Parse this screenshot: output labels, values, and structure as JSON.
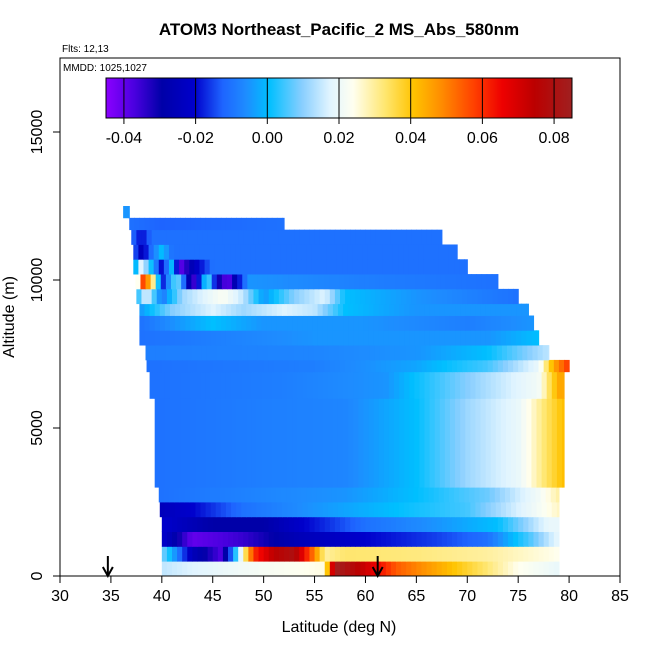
{
  "chart_data": {
    "type": "heatmap",
    "title": "ATOM3 Northeast_Pacific_2 MS_Abs_580nm",
    "flights_label": "Flts: 12,13",
    "dates_label": "MMDD: 1025,1027",
    "xlabel": "Latitude (deg N)",
    "ylabel": "Altitude (m)",
    "xlim": [
      30,
      85
    ],
    "ylim": [
      0,
      17500
    ],
    "x_ticks": [
      "30",
      "35",
      "40",
      "45",
      "50",
      "55",
      "60",
      "65",
      "70",
      "75",
      "80",
      "85"
    ],
    "y_ticks": [
      "0",
      "5000",
      "10000",
      "15000"
    ],
    "colorbar": {
      "range": [
        -0.045,
        0.085
      ],
      "ticks": [
        "-0.04",
        "-0.02",
        "0.00",
        "0.02",
        "0.04",
        "0.06",
        "0.08"
      ],
      "tick_values": [
        -0.04,
        -0.02,
        0.0,
        0.02,
        0.04,
        0.06,
        0.08
      ]
    },
    "arrow_latitudes": [
      34.7,
      61.2
    ],
    "rows": [
      {
        "alt": [
          0,
          500
        ],
        "lat": [
          40,
          79
        ],
        "profile": [
          [
            40,
            0.015
          ],
          [
            43,
            0.018
          ],
          [
            48,
            0.022
          ],
          [
            56,
            0.026
          ],
          [
            57,
            0.085
          ],
          [
            60,
            0.072
          ],
          [
            63,
            0.055
          ],
          [
            67,
            0.045
          ],
          [
            71,
            0.035
          ],
          [
            75,
            0.025
          ],
          [
            79,
            0.02
          ]
        ]
      },
      {
        "alt": [
          500,
          1000
        ],
        "lat": [
          40,
          79
        ],
        "profile": [
          [
            40,
            0.01
          ],
          [
            43,
            -0.025
          ],
          [
            46,
            -0.038
          ],
          [
            49,
            0.06
          ],
          [
            51,
            0.075
          ],
          [
            53,
            0.08
          ],
          [
            55,
            0.05
          ],
          [
            56,
            0.03
          ],
          [
            58,
            0.033
          ],
          [
            65,
            0.032
          ],
          [
            72,
            0.03
          ],
          [
            79,
            0.025
          ]
        ]
      },
      {
        "alt": [
          1000,
          1500
        ],
        "lat": [
          40,
          79
        ],
        "profile": [
          [
            40,
            -0.02
          ],
          [
            43,
            -0.04
          ],
          [
            48,
            -0.035
          ],
          [
            51,
            -0.03
          ],
          [
            54,
            -0.025
          ],
          [
            60,
            -0.02
          ],
          [
            67,
            -0.015
          ],
          [
            72,
            -0.01
          ],
          [
            76,
            0.005
          ],
          [
            79,
            0.02
          ]
        ]
      },
      {
        "alt": [
          1500,
          2000
        ],
        "lat": [
          40,
          79
        ],
        "profile": [
          [
            40,
            -0.02
          ],
          [
            45,
            -0.03
          ],
          [
            50,
            -0.03
          ],
          [
            54,
            -0.02
          ],
          [
            60,
            -0.01
          ],
          [
            67,
            -0.005
          ],
          [
            73,
            0.0
          ],
          [
            78,
            0.02
          ]
        ]
      },
      {
        "alt": [
          2000,
          2500
        ],
        "lat": [
          39.8,
          79
        ],
        "profile": [
          [
            39.8,
            -0.025
          ],
          [
            43,
            -0.02
          ],
          [
            48,
            -0.01
          ],
          [
            55,
            -0.005
          ],
          [
            63,
            0.0
          ],
          [
            70,
            0.005
          ],
          [
            76,
            0.02
          ],
          [
            79,
            0.028
          ]
        ]
      },
      {
        "alt": [
          2500,
          3000
        ],
        "lat": [
          39.7,
          79
        ],
        "profile": [
          [
            39.7,
            -0.01
          ],
          [
            50,
            -0.007
          ],
          [
            58,
            -0.005
          ],
          [
            65,
            0.0
          ],
          [
            72,
            0.008
          ],
          [
            77,
            0.022
          ],
          [
            79,
            0.03
          ]
        ]
      },
      {
        "alt": [
          3000,
          6000
        ],
        "lat": [
          39.3,
          79.5
        ],
        "profile": [
          [
            39.3,
            -0.01
          ],
          [
            50,
            -0.008
          ],
          [
            58,
            -0.007
          ],
          [
            65,
            0.0
          ],
          [
            70,
            0.012
          ],
          [
            75,
            0.02
          ],
          [
            77,
            0.03
          ],
          [
            79.5,
            0.042
          ]
        ]
      },
      {
        "alt": [
          6000,
          6900
        ],
        "lat": [
          38.8,
          79.5
        ],
        "profile": [
          [
            38.8,
            -0.01
          ],
          [
            52,
            -0.008
          ],
          [
            62,
            -0.005
          ],
          [
            70,
            0.01
          ],
          [
            77,
            0.022
          ],
          [
            79,
            0.045
          ]
        ]
      },
      {
        "alt": [
          6900,
          7300
        ],
        "lat": [
          38.5,
          80
        ],
        "profile": [
          [
            38.5,
            -0.01
          ],
          [
            55,
            -0.008
          ],
          [
            65,
            -0.003
          ],
          [
            72,
            0.005
          ],
          [
            77,
            0.02
          ],
          [
            78.5,
            0.045
          ],
          [
            80,
            0.06
          ]
        ]
      },
      {
        "alt": [
          7300,
          7800
        ],
        "lat": [
          38.4,
          78
        ],
        "profile": [
          [
            38.4,
            -0.008
          ],
          [
            55,
            -0.007
          ],
          [
            65,
            -0.005
          ],
          [
            72,
            0.0
          ],
          [
            76,
            0.01
          ],
          [
            78,
            0.015
          ]
        ]
      },
      {
        "alt": [
          7800,
          8300
        ],
        "lat": [
          37.8,
          77
        ],
        "profile": [
          [
            37.8,
            -0.01
          ],
          [
            45,
            -0.008
          ],
          [
            55,
            -0.005
          ],
          [
            65,
            -0.005
          ],
          [
            72,
            -0.005
          ],
          [
            77,
            0.0
          ]
        ]
      },
      {
        "alt": [
          8300,
          8800
        ],
        "lat": [
          37.8,
          76.5
        ],
        "profile": [
          [
            37.8,
            -0.01
          ],
          [
            45,
            0.0
          ],
          [
            50,
            -0.005
          ],
          [
            60,
            -0.005
          ],
          [
            70,
            -0.008
          ],
          [
            76.5,
            -0.005
          ]
        ]
      },
      {
        "alt": [
          8800,
          9200
        ],
        "lat": [
          37.8,
          76
        ],
        "profile": [
          [
            37.8,
            -0.005
          ],
          [
            41,
            0.01
          ],
          [
            45,
            0.018
          ],
          [
            48,
            0.012
          ],
          [
            52,
            0.018
          ],
          [
            55,
            0.015
          ],
          [
            58,
            0.0
          ],
          [
            65,
            -0.005
          ],
          [
            76,
            -0.005
          ]
        ]
      },
      {
        "alt": [
          9200,
          9700
        ],
        "lat": [
          37.5,
          75
        ],
        "profile": [
          [
            37.5,
            0.0
          ],
          [
            38.5,
            0.02
          ],
          [
            40,
            -0.01
          ],
          [
            42,
            0.012
          ],
          [
            44,
            0.018
          ],
          [
            46,
            0.024
          ],
          [
            48,
            0.015
          ],
          [
            50,
            -0.005
          ],
          [
            53,
            0.01
          ],
          [
            56,
            0.018
          ],
          [
            58,
            0.0
          ],
          [
            65,
            -0.005
          ],
          [
            75,
            -0.01
          ]
        ]
      },
      {
        "alt": [
          9700,
          10200
        ],
        "lat": [
          37.4,
          73
        ],
        "profile": [
          [
            37.4,
            0.0
          ],
          [
            38,
            0.06
          ],
          [
            39,
            0.04
          ],
          [
            40,
            -0.02
          ],
          [
            41.5,
            0.012
          ],
          [
            43,
            -0.04
          ],
          [
            44.5,
            0.01
          ],
          [
            45.5,
            -0.03
          ],
          [
            46.5,
            -0.04
          ],
          [
            47.5,
            -0.02
          ],
          [
            48.5,
            -0.005
          ],
          [
            60,
            -0.008
          ],
          [
            73,
            -0.01
          ]
        ]
      },
      {
        "alt": [
          10200,
          10700
        ],
        "lat": [
          37.2,
          70
        ],
        "profile": [
          [
            37.2,
            -0.01
          ],
          [
            38,
            0.02
          ],
          [
            39,
            0.0
          ],
          [
            40,
            -0.02
          ],
          [
            41,
            0.0
          ],
          [
            42,
            -0.04
          ],
          [
            43,
            -0.025
          ],
          [
            45,
            -0.01
          ],
          [
            55,
            -0.01
          ],
          [
            70,
            -0.01
          ]
        ]
      },
      {
        "alt": [
          10700,
          11200
        ],
        "lat": [
          37.2,
          69
        ],
        "profile": [
          [
            37.2,
            -0.01
          ],
          [
            38,
            -0.025
          ],
          [
            39,
            -0.01
          ],
          [
            40,
            0.0
          ],
          [
            41,
            -0.01
          ],
          [
            45,
            -0.01
          ],
          [
            55,
            -0.01
          ],
          [
            69,
            -0.01
          ]
        ]
      },
      {
        "alt": [
          11200,
          11700
        ],
        "lat": [
          37,
          67.5
        ],
        "profile": [
          [
            37,
            -0.01
          ],
          [
            38,
            -0.02
          ],
          [
            39,
            -0.01
          ],
          [
            45,
            -0.01
          ],
          [
            60,
            -0.01
          ],
          [
            67.5,
            -0.01
          ]
        ]
      },
      {
        "alt": [
          11700,
          12100
        ],
        "lat": [
          36.8,
          52
        ],
        "profile": [
          [
            36.8,
            -0.01
          ],
          [
            40,
            -0.012
          ],
          [
            52,
            -0.01
          ]
        ]
      },
      {
        "alt": [
          12100,
          12500
        ],
        "lat": [
          36.2,
          36.8
        ],
        "profile": [
          [
            36.2,
            -0.005
          ],
          [
            36.8,
            -0.005
          ]
        ]
      }
    ]
  }
}
